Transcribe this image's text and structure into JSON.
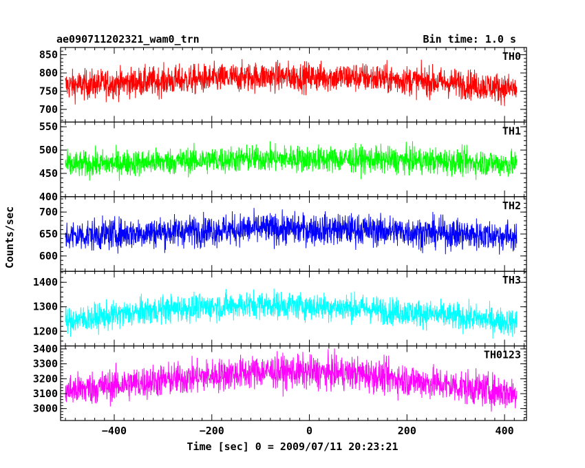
{
  "chart_data": {
    "type": "line",
    "title_left": "ae090711202321_wam0_trn",
    "title_right": "Bin time: 1.0 s",
    "xlabel": "Time [sec] 0 = 2009/07/11 20:23:21",
    "ylabel": "Counts/sec",
    "xlim": [
      -510,
      445
    ],
    "x_range": [
      -500,
      425
    ],
    "x_ticks": [
      -400,
      -200,
      0,
      200,
      400
    ],
    "x_tick_labels": [
      "−400",
      "−200",
      "0",
      "200",
      "400"
    ],
    "grid": false,
    "panels": [
      {
        "name": "TH0",
        "color": "#ff0000",
        "ylim": [
          665,
          870
        ],
        "y_ticks": [
          700,
          750,
          800,
          850
        ],
        "y_tick_labels": [
          "700",
          "750",
          "800",
          "850"
        ],
        "trend": [
          [
            -500,
            765
          ],
          [
            -300,
            778
          ],
          [
            -100,
            790
          ],
          [
            100,
            788
          ],
          [
            300,
            772
          ],
          [
            425,
            755
          ]
        ],
        "noise_amplitude": 40
      },
      {
        "name": "TH1",
        "color": "#00ff00",
        "ylim": [
          400,
          560
        ],
        "y_ticks": [
          400,
          450,
          500,
          550
        ],
        "y_tick_labels": [
          "400",
          "450",
          "500",
          "550"
        ],
        "trend": [
          [
            -500,
            468
          ],
          [
            -300,
            475
          ],
          [
            -100,
            482
          ],
          [
            100,
            480
          ],
          [
            300,
            475
          ],
          [
            425,
            470
          ]
        ],
        "noise_amplitude": 28
      },
      {
        "name": "TH2",
        "color": "#0000ff",
        "ylim": [
          565,
          735
        ],
        "y_ticks": [
          600,
          650,
          700
        ],
        "y_tick_labels": [
          "600",
          "650",
          "700"
        ],
        "trend": [
          [
            -500,
            645
          ],
          [
            -300,
            655
          ],
          [
            -100,
            662
          ],
          [
            100,
            660
          ],
          [
            300,
            650
          ],
          [
            425,
            645
          ]
        ],
        "noise_amplitude": 35
      },
      {
        "name": "TH3",
        "color": "#00ffff",
        "ylim": [
          1140,
          1445
        ],
        "y_ticks": [
          1200,
          1300,
          1400
        ],
        "y_tick_labels": [
          "1200",
          "1300",
          "1400"
        ],
        "trend": [
          [
            -500,
            1240
          ],
          [
            -300,
            1290
          ],
          [
            -100,
            1310
          ],
          [
            100,
            1295
          ],
          [
            300,
            1260
          ],
          [
            425,
            1235
          ]
        ],
        "noise_amplitude": 55
      },
      {
        "name": "TH0123",
        "color": "#ff00ff",
        "ylim": [
          2920,
          3420
        ],
        "y_ticks": [
          3000,
          3100,
          3200,
          3300,
          3400
        ],
        "y_tick_labels": [
          "3000",
          "3100",
          "3200",
          "3300",
          "3400"
        ],
        "trend": [
          [
            -500,
            3120
          ],
          [
            -300,
            3190
          ],
          [
            -100,
            3250
          ],
          [
            100,
            3235
          ],
          [
            300,
            3150
          ],
          [
            425,
            3100
          ]
        ],
        "noise_amplitude": 110
      }
    ]
  }
}
